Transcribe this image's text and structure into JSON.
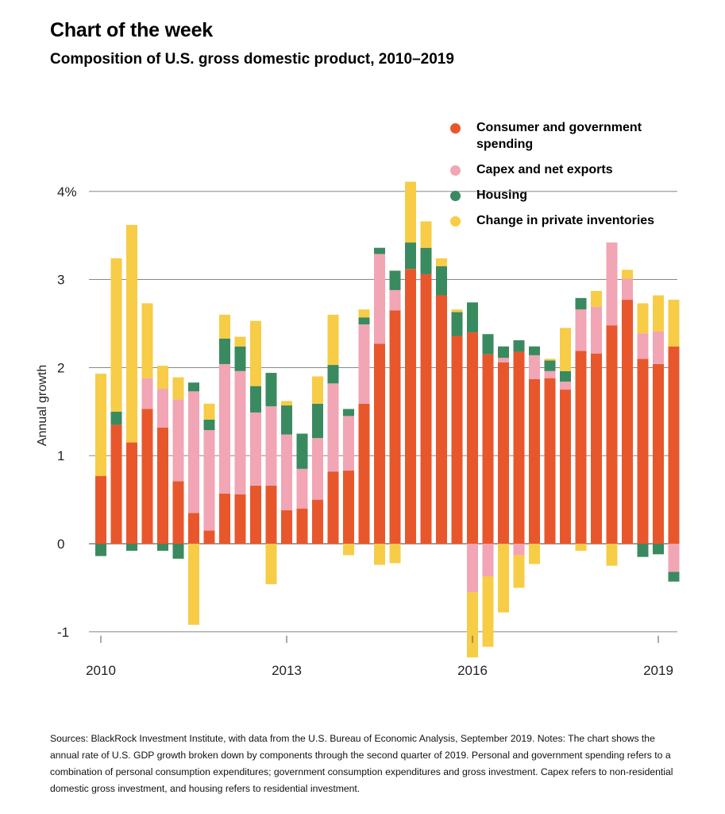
{
  "header": {
    "title": "Chart of the week",
    "subtitle": "Composition of U.S. gross domestic product, 2010–2019"
  },
  "notes": "Sources: BlackRock Investment Institute, with data from the U.S. Bureau of Economic Analysis, September 2019. Notes: The chart shows the annual rate of U.S. GDP growth broken down by components through the second quarter of 2019. Personal and government spending refers to a combination of personal consumption expenditures; government consumption expenditures and gross investment. Capex refers to non-residential domestic gross investment, and housing refers to residential investment.",
  "colors": {
    "consumer": "#e8572c",
    "capex": "#f1a5b5",
    "housing": "#3a8a60",
    "inventories": "#f7cc46",
    "grid": "#777777"
  },
  "chart_data": {
    "type": "bar",
    "stacked": true,
    "ylabel": "Annual growth",
    "ylim": [
      -1,
      4
    ],
    "yticks": [
      {
        "value": 4,
        "label": "4%"
      },
      {
        "value": 3,
        "label": "3"
      },
      {
        "value": 2,
        "label": "2"
      },
      {
        "value": 1,
        "label": "1"
      },
      {
        "value": 0,
        "label": "0"
      },
      {
        "value": -1,
        "label": "-1"
      }
    ],
    "xticks": [
      {
        "index": 0,
        "label": "2010"
      },
      {
        "index": 12,
        "label": "2013"
      },
      {
        "index": 24,
        "label": "2016"
      },
      {
        "index": 36,
        "label": "2019"
      }
    ],
    "legend_position": "top-right",
    "categories": [
      "2010 Q1",
      "2010 Q2",
      "2010 Q3",
      "2010 Q4",
      "2011 Q1",
      "2011 Q2",
      "2011 Q3",
      "2011 Q4",
      "2012 Q1",
      "2012 Q2",
      "2012 Q3",
      "2012 Q4",
      "2013 Q1",
      "2013 Q2",
      "2013 Q3",
      "2013 Q4",
      "2014 Q1",
      "2014 Q2",
      "2014 Q3",
      "2014 Q4",
      "2015 Q1",
      "2015 Q2",
      "2015 Q3",
      "2015 Q4",
      "2016 Q1",
      "2016 Q2",
      "2016 Q3",
      "2016 Q4",
      "2017 Q1",
      "2017 Q2",
      "2017 Q3",
      "2017 Q4",
      "2018 Q1",
      "2018 Q2",
      "2018 Q3",
      "2018 Q4",
      "2019 Q1",
      "2019 Q2"
    ],
    "series": [
      {
        "key": "consumer",
        "name": "Consumer and government spending",
        "values": [
          0.77,
          1.35,
          1.15,
          1.53,
          1.32,
          0.71,
          0.35,
          0.15,
          0.57,
          0.56,
          0.66,
          0.66,
          0.38,
          0.4,
          0.5,
          0.82,
          0.83,
          1.59,
          2.27,
          2.65,
          3.12,
          3.06,
          2.82,
          2.36,
          2.4,
          2.15,
          2.06,
          2.18,
          1.87,
          1.88,
          1.75,
          2.19,
          2.16,
          2.48,
          2.77,
          2.1,
          2.04,
          2.24
        ]
      },
      {
        "key": "capex",
        "name": "Capex and net exports",
        "values": [
          0,
          0,
          0,
          0.35,
          0.44,
          0.93,
          1.38,
          1.14,
          1.47,
          1.4,
          0.83,
          0.9,
          0.86,
          0.45,
          0.7,
          1.0,
          0.62,
          0.9,
          1.02,
          0.23,
          0,
          0,
          0,
          0,
          -0.55,
          -0.37,
          0.05,
          -0.13,
          0.27,
          0.08,
          0.09,
          0.47,
          0.53,
          0.94,
          0.24,
          0.29,
          0.37,
          -0.32
        ]
      },
      {
        "key": "housing",
        "name": "Housing",
        "values": [
          -0.14,
          0.15,
          -0.08,
          0,
          -0.08,
          -0.17,
          0.1,
          0.12,
          0.29,
          0.28,
          0.3,
          0.38,
          0.33,
          0.4,
          0.39,
          0.21,
          0.08,
          0.08,
          0.07,
          0.22,
          0.3,
          0.3,
          0.33,
          0.27,
          0.34,
          0.23,
          0.13,
          0.13,
          0.1,
          0.12,
          0.12,
          0.13,
          0,
          0,
          0,
          -0.15,
          -0.12,
          -0.11
        ]
      },
      {
        "key": "inventories",
        "name": "Change in private inventories",
        "values": [
          1.16,
          1.74,
          2.47,
          0.85,
          0.26,
          0.25,
          -0.92,
          0.18,
          0.27,
          0.11,
          0.74,
          -0.46,
          0.05,
          0,
          0.31,
          0.57,
          -0.13,
          0.09,
          -0.24,
          -0.22,
          0.69,
          0.3,
          0.09,
          0.03,
          -0.74,
          -0.8,
          -0.78,
          -0.37,
          -0.23,
          0.02,
          0.49,
          -0.08,
          0.18,
          -0.25,
          0.1,
          0.34,
          0.41,
          0.53
        ]
      }
    ]
  }
}
